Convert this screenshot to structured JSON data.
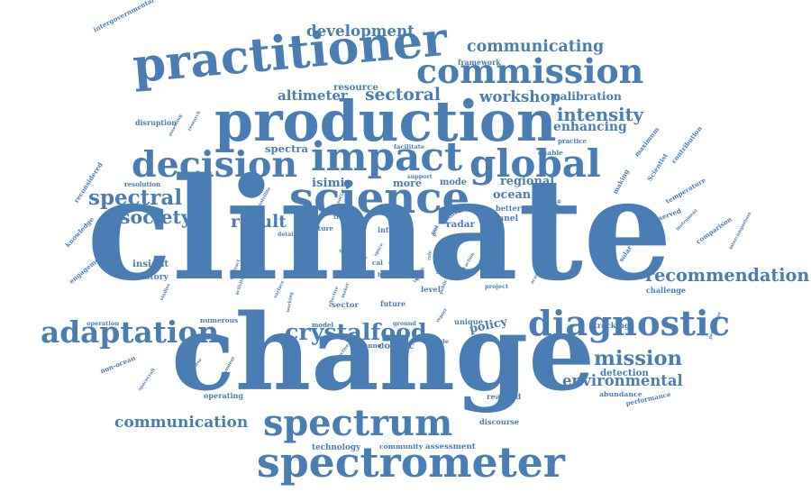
{
  "cloud": {
    "color": "#4a7db3",
    "background": "#ffffff",
    "words": [
      {
        "id": "climate",
        "text": "climate"
      },
      {
        "id": "change",
        "text": "change"
      },
      {
        "id": "production",
        "text": "production"
      },
      {
        "id": "practitioner",
        "text": "practitioner"
      },
      {
        "id": "commission",
        "text": "commission"
      },
      {
        "id": "science",
        "text": "science"
      },
      {
        "id": "spectrometer",
        "text": "spectrometer"
      },
      {
        "id": "impact",
        "text": "impact"
      },
      {
        "id": "global",
        "text": "global"
      },
      {
        "id": "decision",
        "text": "decision"
      },
      {
        "id": "diagnostic",
        "text": "diagnostic"
      },
      {
        "id": "spectrum",
        "text": "spectrum"
      },
      {
        "id": "performance",
        "text": "performance"
      },
      {
        "id": "adaptation",
        "text": "adaptation"
      },
      {
        "id": "crystalfood",
        "text": "crystalfood"
      },
      {
        "id": "intergovernmental",
        "text": "intergovernmental"
      },
      {
        "id": "reconsidered",
        "text": "reconsidered"
      },
      {
        "id": "scientist",
        "text": "Scientist"
      },
      {
        "id": "making",
        "text": "making"
      },
      {
        "id": "flare",
        "text": "flare"
      },
      {
        "id": "solar",
        "text": "solar"
      },
      {
        "id": "recommendation",
        "text": "recommendation"
      },
      {
        "id": "spectral",
        "text": "spectral"
      },
      {
        "id": "society",
        "text": "society"
      },
      {
        "id": "knowledge",
        "text": "knowledge"
      },
      {
        "id": "policy",
        "text": "policy"
      },
      {
        "id": "mission",
        "text": "mission"
      },
      {
        "id": "environmental",
        "text": "environmental"
      },
      {
        "id": "communication",
        "text": "communication"
      },
      {
        "id": "intensity",
        "text": "intensity"
      },
      {
        "id": "development",
        "text": "development"
      },
      {
        "id": "communicating",
        "text": "communicating"
      },
      {
        "id": "sectoral",
        "text": "sectoral"
      },
      {
        "id": "workshop",
        "text": "workshop"
      },
      {
        "id": "calibration",
        "text": "calibration"
      },
      {
        "id": "enhancing",
        "text": "enhancing"
      },
      {
        "id": "maximum",
        "text": "maximum"
      },
      {
        "id": "contribution",
        "text": "contribution"
      },
      {
        "id": "altimeter",
        "text": "altimeter"
      },
      {
        "id": "resource",
        "text": "resource"
      },
      {
        "id": "research",
        "text": "research"
      },
      {
        "id": "assessing",
        "text": "assessing"
      },
      {
        "id": "disruption",
        "text": "disruption"
      },
      {
        "id": "spectra",
        "text": "spectra"
      },
      {
        "id": "isimip",
        "text": "isimip"
      },
      {
        "id": "more",
        "text": "more"
      },
      {
        "id": "mode",
        "text": "mode"
      },
      {
        "id": "regional",
        "text": "regional"
      },
      {
        "id": "ocean",
        "text": "ocean"
      },
      {
        "id": "better",
        "text": "better"
      },
      {
        "id": "panel",
        "text": "panel"
      },
      {
        "id": "time",
        "text": "time"
      },
      {
        "id": "radar",
        "text": "radar"
      },
      {
        "id": "result",
        "text": "result"
      },
      {
        "id": "insight",
        "text": "insight"
      },
      {
        "id": "studies",
        "text": "studies"
      },
      {
        "id": "history",
        "text": "history"
      },
      {
        "id": "engagement",
        "text": "engagement"
      },
      {
        "id": "group",
        "text": "group"
      },
      {
        "id": "academia",
        "text": "academia"
      },
      {
        "id": "action",
        "text": "action"
      },
      {
        "id": "line",
        "text": "line"
      },
      {
        "id": "role",
        "text": "role"
      },
      {
        "id": "surface",
        "text": "surface"
      },
      {
        "id": "working",
        "text": "working"
      },
      {
        "id": "report",
        "text": "report"
      },
      {
        "id": "unique",
        "text": "unique"
      },
      {
        "id": "sector",
        "text": "sector"
      },
      {
        "id": "future",
        "text": "future"
      },
      {
        "id": "cosmic",
        "text": "cosmic"
      },
      {
        "id": "response",
        "text": "response"
      },
      {
        "id": "spacecraft",
        "text": "spacecraft"
      },
      {
        "id": "non_ocean",
        "text": "non-ocean"
      },
      {
        "id": "moment",
        "text": "moment"
      },
      {
        "id": "operating",
        "text": "operating"
      },
      {
        "id": "operation",
        "text": "operation"
      },
      {
        "id": "numerous",
        "text": "numerous"
      },
      {
        "id": "tracking",
        "text": "tracking"
      },
      {
        "id": "detection",
        "text": "detection"
      },
      {
        "id": "abundance",
        "text": "abundance"
      },
      {
        "id": "realized",
        "text": "realized"
      },
      {
        "id": "discourse",
        "text": "discourse"
      },
      {
        "id": "technology",
        "text": "technology"
      },
      {
        "id": "community",
        "text": "community"
      },
      {
        "id": "assessment",
        "text": "assessment"
      },
      {
        "id": "comparison",
        "text": "comparison"
      },
      {
        "id": "intercomparison",
        "text": "intercomparison"
      },
      {
        "id": "perspective",
        "text": "perspective"
      },
      {
        "id": "challenge",
        "text": "challenge"
      },
      {
        "id": "temperature",
        "text": "temperature"
      },
      {
        "id": "observed",
        "text": "observed"
      },
      {
        "id": "instrument",
        "text": "instrument"
      },
      {
        "id": "framework",
        "text": "framework"
      },
      {
        "id": "facilitate",
        "text": "facilitate"
      },
      {
        "id": "enable",
        "text": "enable"
      },
      {
        "id": "practice",
        "text": "practice"
      },
      {
        "id": "support",
        "text": "support"
      },
      {
        "id": "resolution",
        "text": "resolution"
      },
      {
        "id": "scientific",
        "text": "scientific"
      },
      {
        "id": "satellite",
        "text": "satellite"
      },
      {
        "id": "social",
        "text": "social"
      },
      {
        "id": "culture",
        "text": "culture"
      },
      {
        "id": "past",
        "text": "past"
      },
      {
        "id": "inter",
        "text": "inter"
      },
      {
        "id": "detail",
        "text": "detail"
      },
      {
        "id": "contract",
        "text": "contract"
      },
      {
        "id": "activities",
        "text": "activities"
      },
      {
        "id": "ground",
        "text": "ground"
      },
      {
        "id": "model",
        "text": "model"
      },
      {
        "id": "channel",
        "text": "channel"
      },
      {
        "id": "collective",
        "text": "collective"
      },
      {
        "id": "variable",
        "text": "variable"
      },
      {
        "id": "project",
        "text": "project"
      },
      {
        "id": "level",
        "text": "level"
      },
      {
        "id": "public",
        "text": "public"
      },
      {
        "id": "effective",
        "text": "effective"
      },
      {
        "id": "maker",
        "text": "maker"
      },
      {
        "id": "proc",
        "text": "proc"
      },
      {
        "id": "drawn",
        "text": "drawn"
      },
      {
        "id": "truth",
        "text": "truth"
      },
      {
        "id": "land",
        "text": "land"
      },
      {
        "id": "data",
        "text": "data"
      },
      {
        "id": "risk",
        "text": "risk"
      },
      {
        "id": "space",
        "text": "space"
      },
      {
        "id": "cal",
        "text": "cal"
      },
      {
        "id": "hit",
        "text": "hit"
      },
      {
        "id": "part",
        "text": "part"
      },
      {
        "id": "tool",
        "text": "tool"
      },
      {
        "id": "skin",
        "text": "skin"
      },
      {
        "id": "input",
        "text": "input"
      },
      {
        "id": "inform",
        "text": "inform"
      },
      {
        "id": "ann",
        "text": "ann"
      }
    ]
  }
}
